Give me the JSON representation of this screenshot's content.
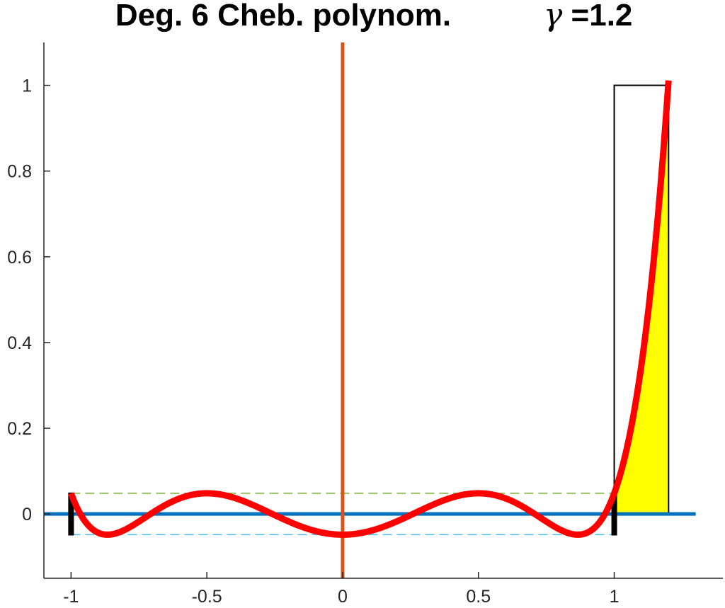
{
  "title": {
    "main": "Deg. 6 Cheb. polynom.",
    "gamma_symbol": "γ",
    "gamma_value": " =1.2"
  },
  "chart_data": {
    "type": "line",
    "xlim": [
      -1.1,
      1.4
    ],
    "ylim": [
      -0.15,
      1.1
    ],
    "xticks": [
      -1,
      -0.5,
      0,
      0.5,
      1
    ],
    "xtick_labels": [
      "-1",
      "-0.5",
      "0",
      "0.5",
      "1"
    ],
    "yticks": [
      0,
      0.2,
      0.4,
      0.6,
      0.8,
      1
    ],
    "ytick_labels": [
      "0",
      "0.2",
      "0.4",
      "0.6",
      "0.8",
      "1"
    ],
    "grid": false,
    "box": false,
    "degree": 6,
    "gamma": 1.2,
    "epsilon": 0.0483,
    "polynomial": {
      "description": "p(x) = epsilon * T6(x)",
      "x_range": [
        -1,
        1.2
      ],
      "color": "#ff0000"
    },
    "reference_lines": {
      "zero_line": {
        "y": 0,
        "x_range": [
          -1.1,
          1.3
        ],
        "color": "#0072bd"
      },
      "vertical_line": {
        "x": 0,
        "color": "#d95319"
      },
      "upper_dashed": {
        "y": 0.0483,
        "x_range": [
          -1,
          1
        ],
        "color": "#77ac30"
      },
      "lower_dashed": {
        "y": -0.0483,
        "x_range": [
          -1,
          1
        ],
        "color": "#4dbeee"
      }
    },
    "interval_markers": {
      "x": [
        -1,
        1
      ],
      "y_range": [
        -0.05,
        0.05
      ],
      "color": "#000000"
    },
    "target_rectangle": {
      "x_range": [
        1,
        1.2
      ],
      "y_range": [
        0,
        1
      ],
      "edge_color": "#000000"
    },
    "fill_region": {
      "x_range": [
        1,
        1.2
      ],
      "color": "#ffff00",
      "edge_color": "#000000"
    }
  }
}
